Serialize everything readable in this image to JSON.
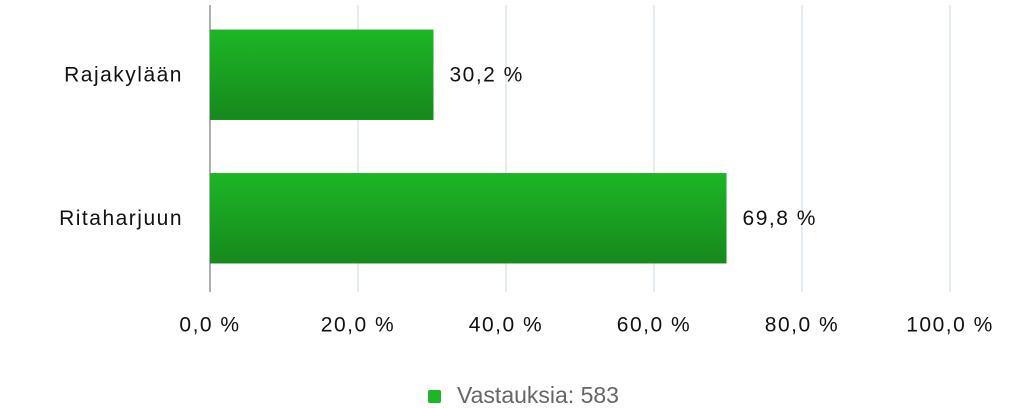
{
  "chart_data": {
    "type": "bar",
    "orientation": "horizontal",
    "categories": [
      "Rajakylään",
      "Ritaharjuun"
    ],
    "series": [
      {
        "name": "Vastauksia: 583",
        "color": "#1db626",
        "values": [
          30.2,
          69.8
        ],
        "value_labels": [
          "30,2 %",
          "69,8 %"
        ]
      }
    ],
    "xlim": [
      0,
      100
    ],
    "xticks": [
      {
        "value": 0,
        "label": "0,0 %"
      },
      {
        "value": 20,
        "label": "20,0 %"
      },
      {
        "value": 40,
        "label": "40,0 %"
      },
      {
        "value": 60,
        "label": "60,0 %"
      },
      {
        "value": 80,
        "label": "80,0 %"
      },
      {
        "value": 100,
        "label": "100,0 %"
      }
    ],
    "grid": true,
    "legend": "bottom"
  }
}
